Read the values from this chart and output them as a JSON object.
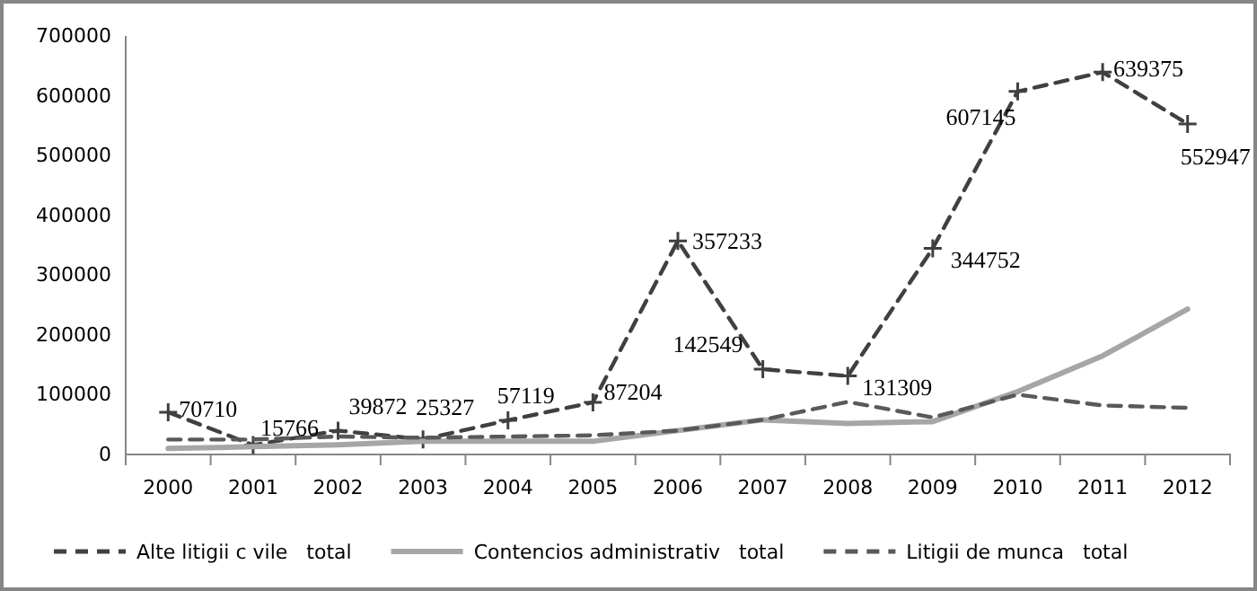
{
  "chart_data": {
    "type": "line",
    "categories": [
      "2000",
      "2001",
      "2002",
      "2003",
      "2004",
      "2005",
      "2006",
      "2007",
      "2008",
      "2009",
      "2010",
      "2011",
      "2012"
    ],
    "ylim": [
      0,
      700000
    ],
    "yticks": [
      0,
      100000,
      200000,
      300000,
      400000,
      500000,
      600000,
      700000
    ],
    "grid": false,
    "legend": "bottom",
    "series": [
      {
        "name": "Alte litigii c vile   total",
        "color": "#404040",
        "line_style": "dashed",
        "marker": "cross",
        "values": [
          70710,
          15766,
          39872,
          25327,
          57119,
          87204,
          357233,
          142549,
          131309,
          344752,
          607145,
          639375,
          552947
        ],
        "value_labels": [
          "70710",
          "15766",
          "39872",
          "25327",
          "57119",
          "87204",
          "357233",
          "142549",
          "131309",
          "344752",
          "607145",
          "639375",
          "552947"
        ]
      },
      {
        "name": "Contencios administrativ   total",
        "color": "#a6a6a6",
        "line_style": "solid",
        "marker": "none",
        "values": [
          10000,
          13000,
          16000,
          22000,
          22000,
          22000,
          40000,
          58000,
          52000,
          55000,
          105000,
          165000,
          243000
        ]
      },
      {
        "name": "Litigii de munca   total",
        "color": "#595959",
        "line_style": "dashed",
        "marker": "none",
        "values": [
          25000,
          25000,
          30000,
          28000,
          30000,
          32000,
          40000,
          58000,
          88000,
          62000,
          100000,
          82000,
          78000
        ]
      }
    ]
  }
}
